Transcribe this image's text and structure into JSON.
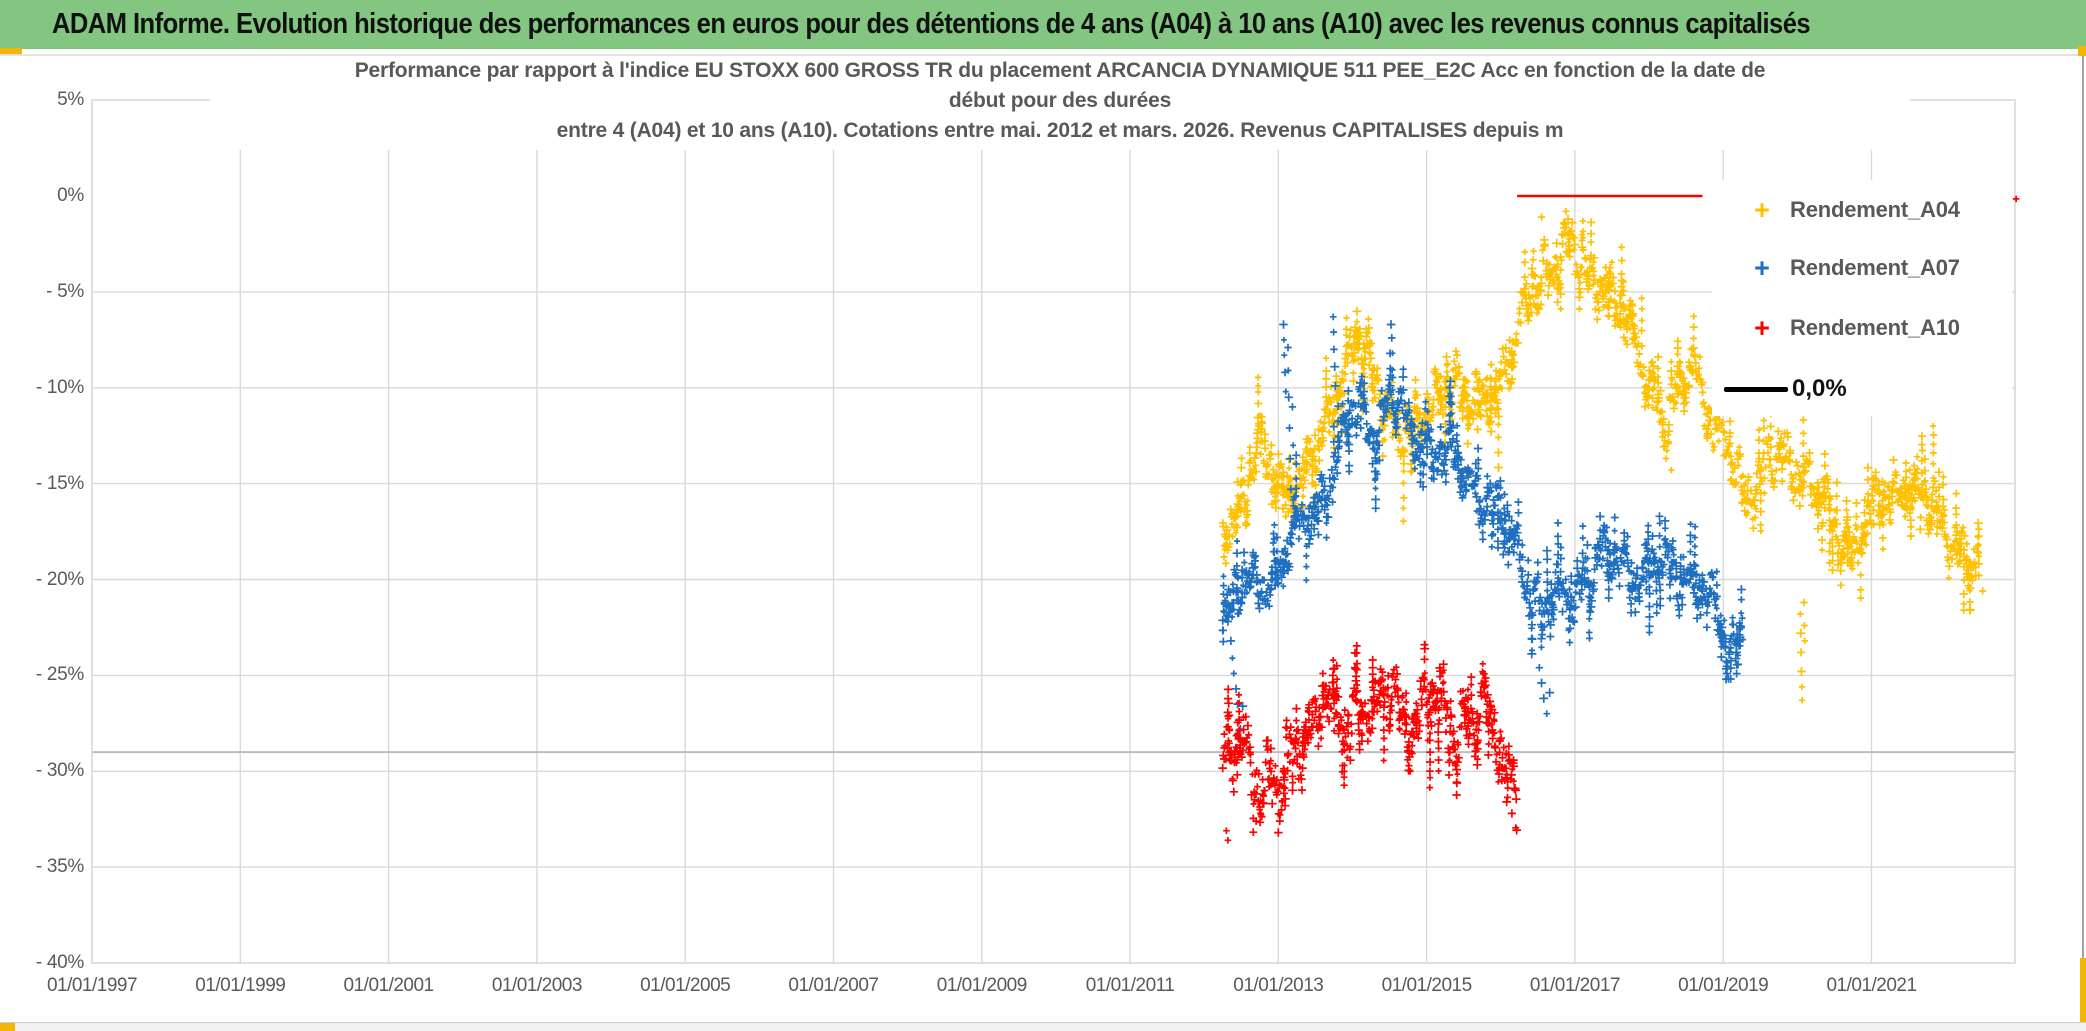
{
  "header": {
    "title": "ADAM Informe. Evolution historique des performances en euros pour des détentions de 4 ans (A04) à 10 ans (A10) avec les revenus connus capitalisés",
    "background": "#82C682",
    "accent_gold": "#F2B705"
  },
  "chart_data": {
    "type": "scatter",
    "title_lines": [
      "Performance par rapport à l'indice EU STOXX 600 GROSS TR  du placement ARCANCIA DYNAMIQUE 511 PEE_E2C Acc en fonction de la date de",
      "début pour des durées",
      "entre 4 (A04) et 10 ans (A10). Cotations entre mai. 2012 et mars. 2026. Revenus CAPITALISES depuis m"
    ],
    "x_axis": {
      "tick_labels": [
        "01/01/1997",
        "01/01/1999",
        "01/01/2001",
        "01/01/2003",
        "01/01/2005",
        "01/01/2007",
        "01/01/2009",
        "01/01/2011",
        "01/01/2013",
        "01/01/2015",
        "01/01/2017",
        "01/01/2019",
        "01/01/2021"
      ],
      "tick_years": [
        1997,
        1999,
        2001,
        2003,
        2005,
        2007,
        2009,
        2011,
        2013,
        2015,
        2017,
        2019,
        2021
      ],
      "range_years": [
        1997,
        2022.93
      ]
    },
    "y_axis": {
      "tick_labels": [
        "5%",
        "0%",
        "- 5%",
        "- 10%",
        "- 15%",
        "- 20%",
        "- 25%",
        "- 30%",
        "- 35%",
        "- 40%"
      ],
      "tick_values": [
        5,
        0,
        -5,
        -10,
        -15,
        -20,
        -25,
        -30,
        -35,
        -40
      ],
      "range_pct": [
        -40,
        5
      ]
    },
    "grid": {
      "color": "#D9D9D9",
      "h_values": [
        -5,
        -10,
        -15,
        -20,
        -25,
        -30,
        -35
      ],
      "v_years": [
        1999,
        2001,
        2003,
        2005,
        2007,
        2009,
        2011,
        2013,
        2015,
        2017,
        2019,
        2021
      ],
      "frame_color": "#D9D9D9",
      "ref_line": {
        "value": -29,
        "color": "#BDBDBD"
      }
    },
    "zero_line_segment": {
      "y": 0,
      "x_from_year": 2016.22,
      "x_to_year": 2018.72,
      "color": "#FF0000"
    },
    "legend": {
      "items": [
        {
          "label": "Rendement_A04",
          "marker": "+",
          "color": "#FFC000"
        },
        {
          "label": "Rendement_A07",
          "marker": "+",
          "color": "#1E6FC0"
        },
        {
          "label": "Rendement_A10",
          "marker": "+",
          "color": "#FF0000"
        }
      ],
      "zero_label": "0,0%",
      "zero_color": "#000000"
    },
    "series": [
      {
        "name": "Rendement_A04",
        "color": "#FFC000",
        "marker": "plus",
        "range": [
          2012.25,
          2022.45
        ],
        "step": 0.0095,
        "band": 1.9,
        "clamp": [
          -21.6,
          -0.5
        ],
        "ph": 0,
        "seed": 11,
        "trend": [
          [
            2012.25,
            -17.5
          ],
          [
            2012.45,
            -16.5
          ],
          [
            2012.72,
            -13.2
          ],
          [
            2013.05,
            -15.2
          ],
          [
            2013.3,
            -14.6
          ],
          [
            2013.55,
            -13.4
          ],
          [
            2014.05,
            -7.2
          ],
          [
            2014.5,
            -11.4
          ],
          [
            2014.85,
            -12.6
          ],
          [
            2015.25,
            -9.3
          ],
          [
            2015.6,
            -11.2
          ],
          [
            2015.95,
            -10.2
          ],
          [
            2016.1,
            -8.6
          ],
          [
            2016.5,
            -4.2
          ],
          [
            2016.9,
            -2.8
          ],
          [
            2017.15,
            -3.8
          ],
          [
            2017.5,
            -5.3
          ],
          [
            2017.95,
            -8.6
          ],
          [
            2018.25,
            -12.2
          ],
          [
            2018.6,
            -8.2
          ],
          [
            2018.85,
            -11.8
          ],
          [
            2019.3,
            -15.4
          ],
          [
            2019.65,
            -13.8
          ],
          [
            2020.0,
            -13.9
          ],
          [
            2020.35,
            -16.2
          ],
          [
            2020.75,
            -18.4
          ],
          [
            2021.1,
            -16.2
          ],
          [
            2021.45,
            -14.8
          ],
          [
            2021.8,
            -16.6
          ],
          [
            2022.1,
            -17.8
          ],
          [
            2022.4,
            -19.2
          ]
        ],
        "outliers": [
          [
            2020.04,
            -21.8
          ],
          [
            2020.045,
            -22.8
          ],
          [
            2020.05,
            -23.8
          ],
          [
            2020.055,
            -24.8
          ],
          [
            2020.06,
            -25.6
          ],
          [
            2020.065,
            -26.3
          ],
          [
            2020.09,
            -21.2
          ],
          [
            2020.095,
            -22.4
          ],
          [
            2020.1,
            -23.2
          ],
          [
            2022.5,
            -20.6
          ],
          [
            2018.3,
            -14.3
          ],
          [
            2016.55,
            -1.1
          ],
          [
            2016.88,
            -0.8
          ]
        ]
      },
      {
        "name": "Rendement_A07",
        "color": "#1E6FC0",
        "marker": "plus",
        "range": [
          2012.25,
          2019.27
        ],
        "step": 0.0095,
        "band": 1.7,
        "clamp": [
          -25.6,
          -5.6
        ],
        "ph": 2.1,
        "seed": 22,
        "trend": [
          [
            2012.25,
            -21.6
          ],
          [
            2012.5,
            -20.6
          ],
          [
            2012.9,
            -19.9
          ],
          [
            2013.3,
            -17.6
          ],
          [
            2013.6,
            -15.4
          ],
          [
            2014.05,
            -10.9
          ],
          [
            2014.3,
            -12.2
          ],
          [
            2014.55,
            -10.4
          ],
          [
            2014.8,
            -12.4
          ],
          [
            2015.25,
            -13.4
          ],
          [
            2015.65,
            -14.9
          ],
          [
            2016.15,
            -18.0
          ],
          [
            2016.55,
            -21.6
          ],
          [
            2016.9,
            -21.0
          ],
          [
            2017.15,
            -19.8
          ],
          [
            2017.45,
            -18.9
          ],
          [
            2017.9,
            -19.7
          ],
          [
            2018.35,
            -19.3
          ],
          [
            2018.7,
            -20.3
          ],
          [
            2018.95,
            -21.8
          ],
          [
            2019.08,
            -23.8
          ],
          [
            2019.27,
            -22.4
          ]
        ],
        "outliers": [
          [
            2012.36,
            -23.2
          ],
          [
            2012.38,
            -24.1
          ],
          [
            2012.4,
            -24.9
          ],
          [
            2012.43,
            -25.7
          ],
          [
            2012.45,
            -26.5
          ],
          [
            2012.47,
            -27.3
          ],
          [
            2012.49,
            -27.8
          ],
          [
            2012.52,
            -26.6
          ],
          [
            2013.07,
            -6.7
          ],
          [
            2013.075,
            -7.5
          ],
          [
            2013.08,
            -8.3
          ],
          [
            2013.09,
            -9.2
          ],
          [
            2013.1,
            -10.2
          ],
          [
            2013.13,
            -7.9
          ],
          [
            2013.135,
            -9.1
          ],
          [
            2013.14,
            -10.5
          ],
          [
            2013.15,
            -12.1
          ],
          [
            2013.16,
            -13.7
          ],
          [
            2013.17,
            -15.3
          ],
          [
            2013.19,
            -11.0
          ],
          [
            2013.2,
            -13.0
          ],
          [
            2013.74,
            -6.3
          ],
          [
            2013.745,
            -7.1
          ],
          [
            2013.75,
            -8.0
          ],
          [
            2013.76,
            -8.9
          ],
          [
            2013.77,
            -9.9
          ],
          [
            2014.52,
            -6.7
          ],
          [
            2014.53,
            -7.4
          ],
          [
            2014.54,
            -8.2
          ],
          [
            2016.52,
            -24.6
          ],
          [
            2016.55,
            -25.4
          ],
          [
            2016.58,
            -26.2
          ],
          [
            2016.62,
            -27.0
          ],
          [
            2016.66,
            -25.9
          ],
          [
            2019.05,
            -24.9
          ]
        ]
      },
      {
        "name": "Rendement_A10",
        "color": "#FF0000",
        "marker": "plus",
        "range": [
          2012.25,
          2016.22
        ],
        "step": 0.009,
        "band": 2.3,
        "clamp": [
          -33.8,
          -23.4
        ],
        "ph": 4.2,
        "seed": 33,
        "trend": [
          [
            2012.25,
            -30.4
          ],
          [
            2012.5,
            -28.4
          ],
          [
            2012.72,
            -30.2
          ],
          [
            2013.0,
            -31.2
          ],
          [
            2013.3,
            -28.2
          ],
          [
            2013.6,
            -26.9
          ],
          [
            2013.9,
            -27.6
          ],
          [
            2014.06,
            -26.2
          ],
          [
            2014.3,
            -27.2
          ],
          [
            2014.55,
            -25.8
          ],
          [
            2014.8,
            -27.4
          ],
          [
            2015.1,
            -26.6
          ],
          [
            2015.4,
            -27.6
          ],
          [
            2015.7,
            -27.0
          ],
          [
            2015.95,
            -28.4
          ],
          [
            2016.1,
            -29.9
          ],
          [
            2016.22,
            -30.6
          ]
        ],
        "outliers": [
          [
            2012.3,
            -33.1
          ],
          [
            2012.32,
            -33.6
          ],
          [
            2012.7,
            -32.6
          ],
          [
            2013.0,
            -33.2
          ],
          [
            2013.02,
            -32.6
          ],
          [
            2016.08,
            -31.6
          ],
          [
            2016.15,
            -32.2
          ],
          [
            2016.2,
            -31.0
          ],
          [
            2022.95,
            -0.15
          ]
        ]
      }
    ]
  }
}
